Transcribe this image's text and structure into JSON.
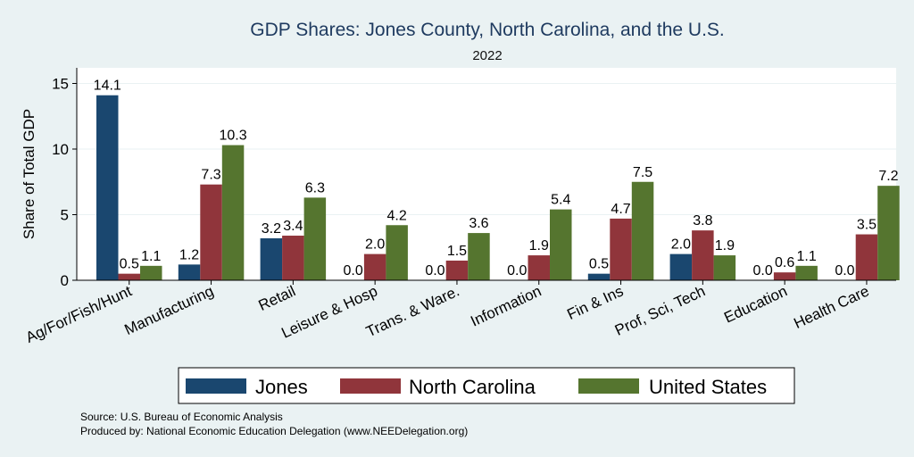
{
  "chart_data": {
    "type": "bar",
    "title": "GDP Shares: Jones County, North Carolina, and the U.S.",
    "subtitle": "2022",
    "ylabel": "Share of Total GDP",
    "xlabel": "",
    "ylim": [
      0,
      16
    ],
    "yticks": [
      0,
      5,
      10,
      15
    ],
    "grid": true,
    "legend_position": "bottom",
    "categories": [
      "Ag/For/Fish/Hunt",
      "Manufacturing",
      "Retail",
      "Leisure & Hosp",
      "Trans. & Ware.",
      "Information",
      "Fin & Ins",
      "Prof, Sci, Tech",
      "Education",
      "Health Care"
    ],
    "series": [
      {
        "name": "Jones",
        "color": "#1a476f",
        "values": [
          14.1,
          1.2,
          3.2,
          0.0,
          0.0,
          0.0,
          0.5,
          2.0,
          0.0,
          0.0
        ],
        "labels": [
          "14.1",
          "1.2",
          "3.2",
          "0.0",
          "0.0",
          "0.0",
          "0.5",
          "2.0",
          "0.0",
          "0.0"
        ]
      },
      {
        "name": "North Carolina",
        "color": "#90353b",
        "values": [
          0.5,
          7.3,
          3.4,
          2.0,
          1.5,
          1.9,
          4.7,
          3.8,
          0.6,
          3.5
        ],
        "labels": [
          "0.5",
          "7.3",
          "3.4",
          "2.0",
          "1.5",
          "1.9",
          "4.7",
          "3.8",
          "0.6",
          "3.5"
        ]
      },
      {
        "name": "United States",
        "color": "#55752f",
        "values": [
          1.1,
          10.3,
          6.3,
          4.2,
          3.6,
          5.4,
          7.5,
          1.9,
          1.1,
          7.2
        ],
        "labels": [
          "1.1",
          "10.3",
          "6.3",
          "4.2",
          "3.6",
          "5.4",
          "7.5",
          "1.9",
          "1.1",
          "7.2"
        ]
      }
    ],
    "notes": [
      "Source: U.S. Bureau of Economic Analysis",
      "Produced by: National Economic Education Delegation (www.NEEDelegation.org)"
    ]
  },
  "colors": {
    "background": "#eaf2f3",
    "plot_background": "#ffffff",
    "grid": "#eaf2f3",
    "title": "#1e3a5f"
  }
}
